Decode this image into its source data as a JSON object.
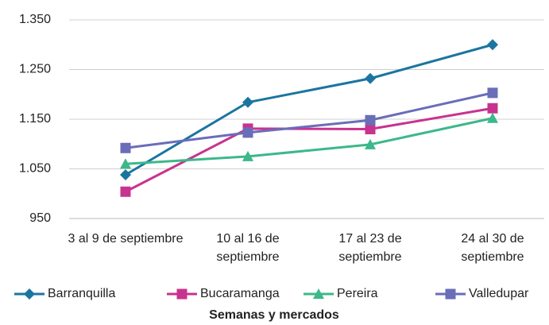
{
  "chart_data": {
    "type": "line",
    "x_label": "Semanas y mercados",
    "categories": [
      "3 al 9 de septiembre",
      "10 al 16 de septiembre",
      "17 al 23 de septiembre",
      "24 al 30 de septiembre"
    ],
    "series": [
      {
        "name": "Barranquilla",
        "color": "#1b75a0",
        "marker": "diamond",
        "values": [
          1038,
          1184,
          1232,
          1300
        ]
      },
      {
        "name": "Bucaramanga",
        "color": "#c8338f",
        "marker": "square",
        "values": [
          1004,
          1131,
          1130,
          1172
        ]
      },
      {
        "name": "Pereira",
        "color": "#3cb88a",
        "marker": "triangle",
        "values": [
          1060,
          1075,
          1099,
          1152
        ]
      },
      {
        "name": "Valledupar",
        "color": "#6a6db8",
        "marker": "square",
        "values": [
          1092,
          1123,
          1148,
          1203
        ]
      }
    ],
    "ylim": [
      950,
      1350
    ],
    "yticks": [
      950,
      {
        "value": 1050,
        "label": "1.050"
      },
      {
        "value": 1150,
        "label": "1.150"
      },
      {
        "value": 1250,
        "label": "1.250"
      },
      {
        "value": 1350,
        "label": "1.350"
      }
    ],
    "grid": true,
    "legend": "bottom"
  }
}
